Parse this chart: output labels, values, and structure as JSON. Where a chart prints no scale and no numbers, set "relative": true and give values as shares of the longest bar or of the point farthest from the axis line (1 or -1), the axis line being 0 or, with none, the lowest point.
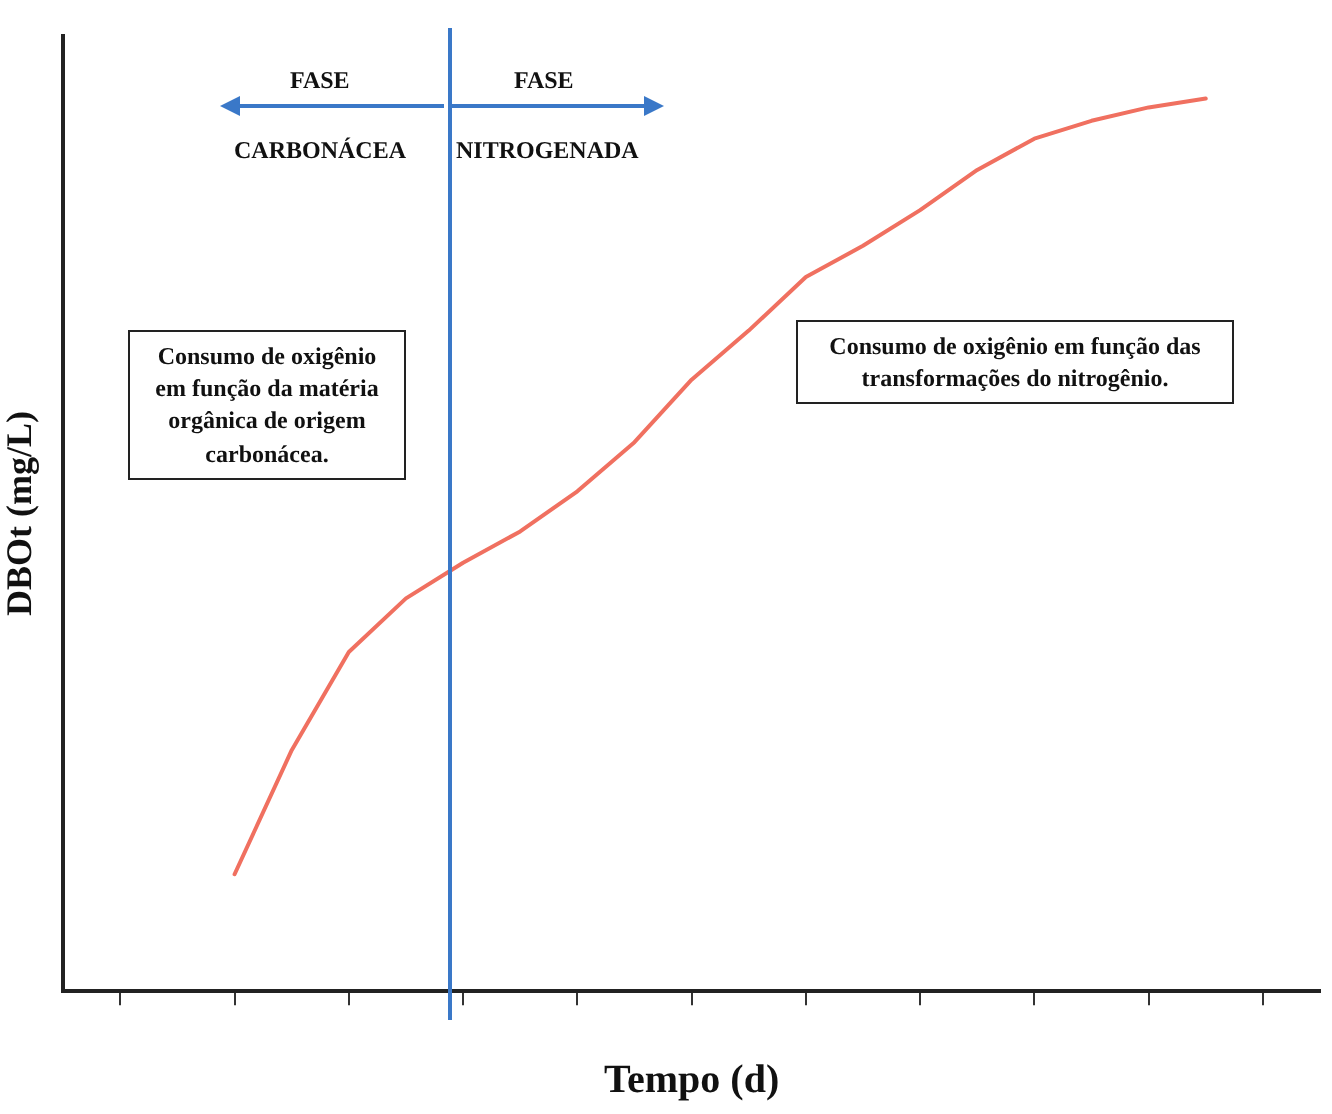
{
  "chart_data": {
    "type": "line",
    "relative": true,
    "xlabel": "Tempo (d)",
    "ylabel": "DBOt (mg/L)",
    "categories": [
      null,
      null,
      null,
      null,
      null,
      null,
      null,
      null,
      null,
      null,
      null,
      null,
      null,
      null,
      null,
      null,
      null,
      null,
      null,
      null,
      null,
      null,
      null
    ],
    "series": [
      {
        "color": "#f07060",
        "values": [
          null,
          null,
          null,
          0.131,
          0.27,
          0.38,
          0.44,
          0.48,
          0.515,
          0.56,
          0.615,
          0.685,
          0.74,
          0.8,
          0.835,
          0.875,
          0.92,
          0.955,
          0.975,
          0.99,
          1.0,
          null,
          null
        ]
      }
    ],
    "annotations": [
      "FASE",
      "FASE",
      "CARBONÁCEA",
      "NITROGENADA",
      "Consumo de oxigênio em função da matéria orgânica de origem carbonácea.",
      "Consumo de oxigênio em função das transformações do nitrogênio."
    ],
    "grid": false,
    "legend": false,
    "marker": "none",
    "line_style": "solid"
  }
}
